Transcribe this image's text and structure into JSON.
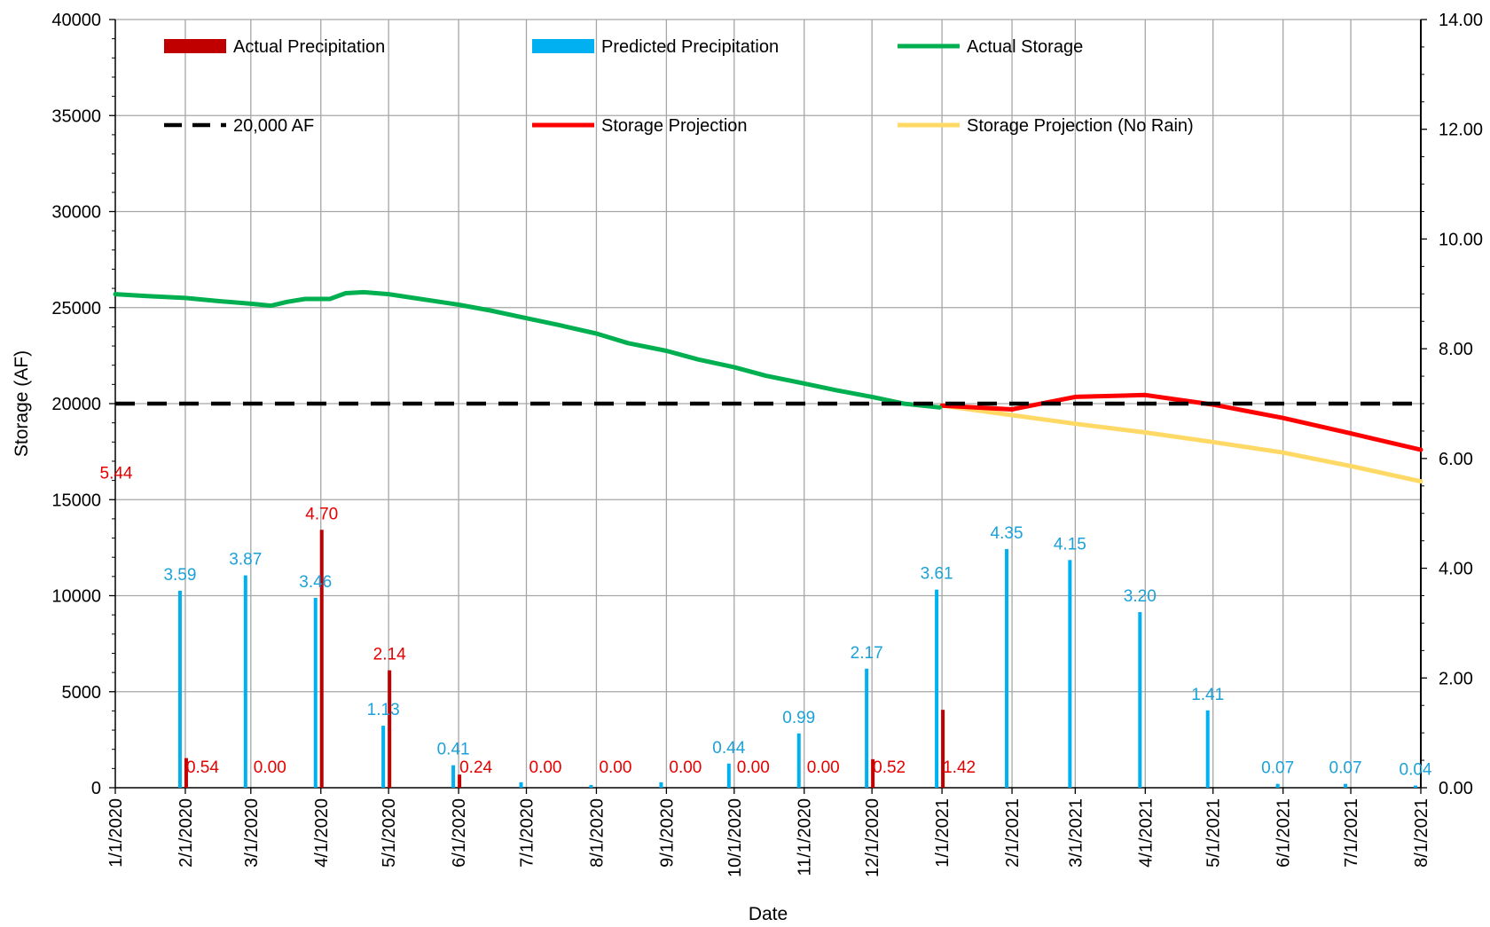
{
  "chart_data": {
    "type": "bar+line",
    "xlabel": "Date",
    "ylabel": "Storage (AF)",
    "y_left": {
      "lim": [
        0,
        40000
      ],
      "ticks": [
        0,
        5000,
        10000,
        15000,
        20000,
        25000,
        30000,
        35000,
        40000
      ]
    },
    "y_right": {
      "lim": [
        0,
        14
      ],
      "ticks": [
        "0.00",
        "2.00",
        "4.00",
        "6.00",
        "8.00",
        "10.00",
        "12.00",
        "14.00"
      ]
    },
    "x_dates": [
      "1/1/2020",
      "2/1/2020",
      "3/1/2020",
      "4/1/2020",
      "5/1/2020",
      "6/1/2020",
      "7/1/2020",
      "8/1/2020",
      "9/1/2020",
      "10/1/2020",
      "11/1/2020",
      "12/1/2020",
      "1/1/2021",
      "2/1/2021",
      "3/1/2021",
      "4/1/2021",
      "5/1/2021",
      "6/1/2021",
      "7/1/2021",
      "8/1/2021"
    ],
    "grid": true,
    "legend": [
      {
        "name": "Actual Precipitation",
        "color": "#c00000",
        "kind": "bar"
      },
      {
        "name": "Predicted Precipitation",
        "color": "#00b0f0",
        "kind": "bar"
      },
      {
        "name": "Actual Storage",
        "color": "#00b050",
        "kind": "line"
      },
      {
        "name": "20,000 AF",
        "color": "#000000",
        "kind": "dash"
      },
      {
        "name": "Storage Projection",
        "color": "#ff0000",
        "kind": "line"
      },
      {
        "name": "Storage Projection (No Rain)",
        "color": "#ffd966",
        "kind": "line"
      }
    ],
    "series": [
      {
        "name": "Actual Precipitation",
        "axis": "right",
        "color": "#c00000",
        "points": [
          {
            "x": "1/1/2020",
            "y": 5.44,
            "label": "5.44"
          },
          {
            "x": "2/1/2020",
            "y": 0.54,
            "label": "0.54"
          },
          {
            "x": "3/1/2020",
            "y": 0.0,
            "label": "0.00"
          },
          {
            "x": "4/1/2020",
            "y": 4.7,
            "label": "4.70"
          },
          {
            "x": "5/1/2020",
            "y": 2.14,
            "label": "2.14"
          },
          {
            "x": "6/1/2020",
            "y": 0.24,
            "label": "0.24"
          },
          {
            "x": "7/1/2020",
            "y": 0.0,
            "label": "0.00"
          },
          {
            "x": "8/1/2020",
            "y": 0.0,
            "label": "0.00"
          },
          {
            "x": "9/1/2020",
            "y": 0.0,
            "label": "0.00"
          },
          {
            "x": "10/1/2020",
            "y": 0.0,
            "label": "0.00"
          },
          {
            "x": "11/1/2020",
            "y": 0.0,
            "label": "0.00"
          },
          {
            "x": "12/1/2020",
            "y": 0.52,
            "label": "0.52"
          },
          {
            "x": "1/1/2021",
            "y": 1.42,
            "label": "1.42"
          }
        ]
      },
      {
        "name": "Predicted Precipitation",
        "axis": "right",
        "color": "#00b0f0",
        "points": [
          {
            "x": "2/1/2020",
            "y": 3.59,
            "label": "3.59"
          },
          {
            "x": "3/1/2020",
            "y": 3.87,
            "label": "3.87"
          },
          {
            "x": "4/1/2020",
            "y": 3.46,
            "label": "3.46"
          },
          {
            "x": "5/1/2020",
            "y": 1.13,
            "label": "1.13"
          },
          {
            "x": "6/1/2020",
            "y": 0.41,
            "label": "0.41"
          },
          {
            "x": "7/1/2020",
            "y": 0.1,
            "label": ""
          },
          {
            "x": "8/1/2020",
            "y": 0.05,
            "label": ""
          },
          {
            "x": "9/1/2020",
            "y": 0.1,
            "label": ""
          },
          {
            "x": "10/1/2020",
            "y": 0.44,
            "label": "0.44"
          },
          {
            "x": "11/1/2020",
            "y": 0.99,
            "label": "0.99"
          },
          {
            "x": "12/1/2020",
            "y": 2.17,
            "label": "2.17"
          },
          {
            "x": "1/1/2021",
            "y": 3.61,
            "label": "3.61"
          },
          {
            "x": "2/1/2021",
            "y": 4.35,
            "label": "4.35"
          },
          {
            "x": "3/1/2021",
            "y": 4.15,
            "label": "4.15"
          },
          {
            "x": "4/1/2021",
            "y": 3.2,
            "label": "3.20"
          },
          {
            "x": "5/1/2021",
            "y": 1.41,
            "label": "1.41"
          },
          {
            "x": "6/1/2021",
            "y": 0.07,
            "label": "0.07"
          },
          {
            "x": "7/1/2021",
            "y": 0.07,
            "label": "0.07"
          },
          {
            "x": "8/1/2021",
            "y": 0.04,
            "label": "0.04"
          }
        ]
      },
      {
        "name": "Actual Storage",
        "axis": "left",
        "color": "#00b050",
        "points": [
          [
            "1/1/2020",
            25700
          ],
          [
            "1/15/2020",
            25600
          ],
          [
            "2/1/2020",
            25500
          ],
          [
            "2/15/2020",
            25350
          ],
          [
            "3/1/2020",
            25200
          ],
          [
            "3/10/2020",
            25100
          ],
          [
            "3/17/2020",
            25300
          ],
          [
            "3/25/2020",
            25450
          ],
          [
            "4/1/2020",
            25450
          ],
          [
            "4/5/2020",
            25450
          ],
          [
            "4/12/2020",
            25750
          ],
          [
            "4/20/2020",
            25800
          ],
          [
            "5/1/2020",
            25700
          ],
          [
            "5/15/2020",
            25450
          ],
          [
            "6/1/2020",
            25150
          ],
          [
            "6/15/2020",
            24850
          ],
          [
            "7/1/2020",
            24450
          ],
          [
            "7/15/2020",
            24100
          ],
          [
            "8/1/2020",
            23650
          ],
          [
            "8/15/2020",
            23150
          ],
          [
            "9/1/2020",
            22750
          ],
          [
            "9/15/2020",
            22300
          ],
          [
            "10/1/2020",
            21900
          ],
          [
            "10/15/2020",
            21450
          ],
          [
            "11/1/2020",
            21050
          ],
          [
            "11/15/2020",
            20700
          ],
          [
            "12/1/2020",
            20350
          ],
          [
            "12/15/2020",
            20000
          ],
          [
            "12/31/2020",
            19800
          ]
        ]
      },
      {
        "name": "20,000 AF",
        "axis": "left",
        "color": "#000000",
        "points": [
          [
            "1/1/2020",
            20000
          ],
          [
            "8/1/2021",
            20000
          ]
        ]
      },
      {
        "name": "Storage Projection",
        "axis": "left",
        "color": "#ff0000",
        "points": [
          [
            "1/1/2021",
            19900
          ],
          [
            "2/1/2021",
            19700
          ],
          [
            "3/1/2021",
            20350
          ],
          [
            "4/1/2021",
            20450
          ],
          [
            "5/1/2021",
            19950
          ],
          [
            "6/1/2021",
            19250
          ],
          [
            "7/1/2021",
            18450
          ],
          [
            "8/1/2021",
            17600
          ]
        ]
      },
      {
        "name": "Storage Projection (No Rain)",
        "axis": "left",
        "color": "#ffd966",
        "points": [
          [
            "1/1/2021",
            19900
          ],
          [
            "2/1/2021",
            19400
          ],
          [
            "3/1/2021",
            18950
          ],
          [
            "4/1/2021",
            18500
          ],
          [
            "5/1/2021",
            18000
          ],
          [
            "6/1/2021",
            17450
          ],
          [
            "7/1/2021",
            16750
          ],
          [
            "8/1/2021",
            15950
          ]
        ]
      }
    ]
  }
}
